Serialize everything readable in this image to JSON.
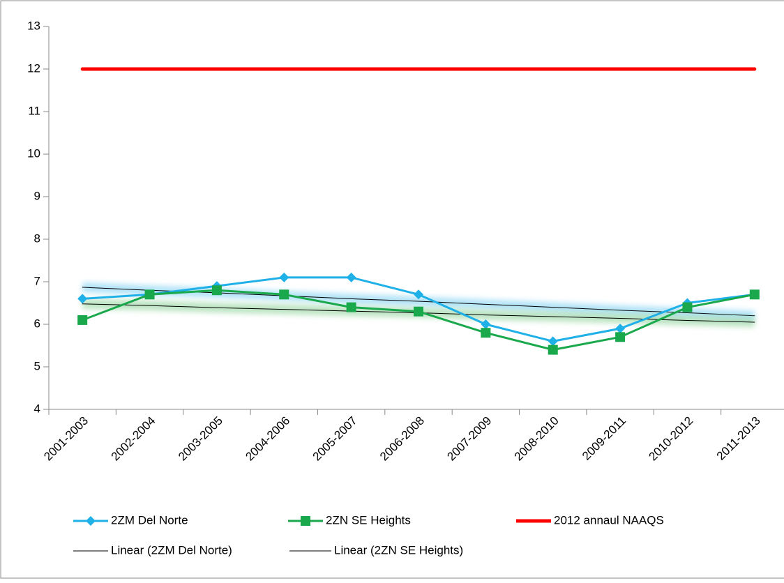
{
  "chart_data": {
    "type": "line",
    "categories": [
      "2001-2003",
      "2002-2004",
      "2003-2005",
      "2004-2006",
      "2005-2007",
      "2006-2008",
      "2007-2009",
      "2008-2010",
      "2009-2011",
      "2010-2012",
      "2011-2013"
    ],
    "series": [
      {
        "name": "2ZM Del Norte",
        "color": "#1fb0e8",
        "marker": "diamond",
        "values": [
          6.6,
          6.7,
          6.9,
          7.1,
          7.1,
          6.7,
          6.0,
          5.6,
          5.9,
          6.5,
          6.7
        ]
      },
      {
        "name": "2ZN SE Heights",
        "color": "#1aa84c",
        "marker": "square",
        "values": [
          6.1,
          6.7,
          6.8,
          6.7,
          6.4,
          6.3,
          5.8,
          5.4,
          5.7,
          6.4,
          6.7
        ]
      },
      {
        "name": "2012 annaul NAAQS",
        "color": "#ff0000",
        "marker": "none",
        "width": 5,
        "values": [
          12,
          12,
          12,
          12,
          12,
          12,
          12,
          12,
          12,
          12,
          12
        ]
      },
      {
        "name": "Linear (2ZM Del Norte)",
        "color": "#000000",
        "marker": "none",
        "width": 1,
        "glow": "#7fd0f2",
        "values": [
          6.87,
          6.8,
          6.74,
          6.67,
          6.6,
          6.54,
          6.47,
          6.4,
          6.33,
          6.27,
          6.2
        ]
      },
      {
        "name": "Linear (2ZN SE Heights)",
        "color": "#000000",
        "marker": "none",
        "width": 1,
        "glow": "#8fd39a",
        "values": [
          6.48,
          6.44,
          6.39,
          6.35,
          6.31,
          6.27,
          6.22,
          6.18,
          6.14,
          6.09,
          6.05
        ]
      }
    ],
    "ylim": [
      4,
      13
    ],
    "yticks": [
      4,
      5,
      6,
      7,
      8,
      9,
      10,
      11,
      12,
      13
    ],
    "grid": false,
    "legend": "bottom"
  }
}
